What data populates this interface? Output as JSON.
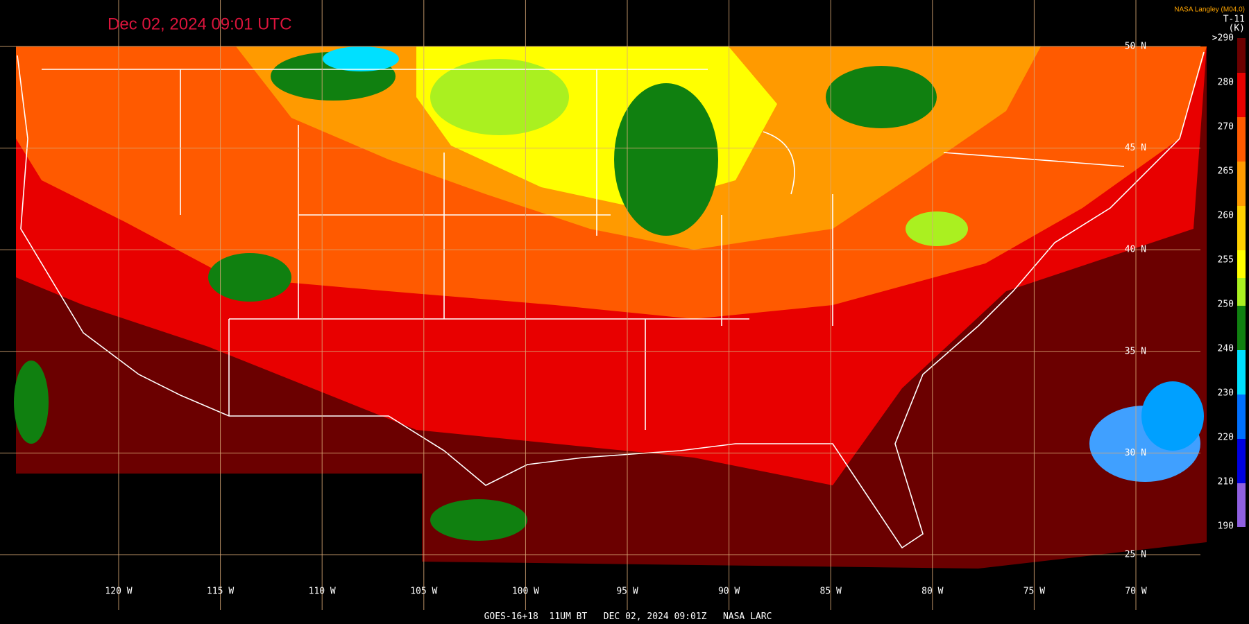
{
  "header": {
    "title": "Dec 02, 2024 09:01 UTC",
    "credit": "NASA Langley (M04.0)"
  },
  "colorbar": {
    "title": "T-11",
    "unit": "(K)",
    "labels": [
      ">290",
      "280",
      "270",
      "265",
      "260",
      "255",
      "250",
      "240",
      "230",
      "220",
      "210",
      "190"
    ]
  },
  "map": {
    "latitude_labels": [
      "50 N",
      "45 N",
      "40 N",
      "35 N",
      "30 N",
      "25 N"
    ],
    "longitude_labels": [
      "120 W",
      "115 W",
      "110 W",
      "105 W",
      "100 W",
      "95 W",
      "90 W",
      "85 W",
      "80 W",
      "75 W",
      "70 W"
    ]
  },
  "footer": {
    "text": "GOES-16+18  11UM BT   DEC 02, 2024 09:01Z   NASA LARC"
  }
}
